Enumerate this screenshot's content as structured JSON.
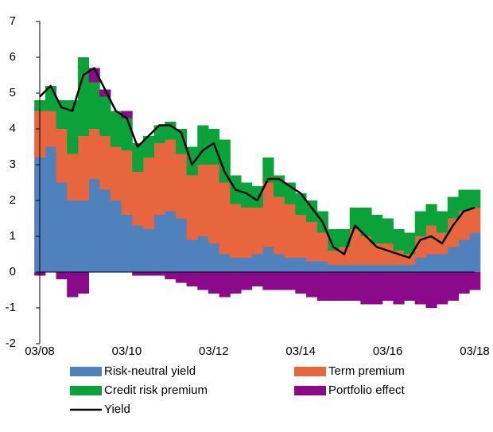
{
  "chart_data": {
    "type": "bar",
    "stacked": true,
    "categories": [
      "03/08",
      null,
      null,
      null,
      null,
      null,
      null,
      null,
      "03/10",
      null,
      null,
      null,
      null,
      null,
      null,
      null,
      "03/12",
      null,
      null,
      null,
      null,
      null,
      null,
      null,
      "03/14",
      null,
      null,
      null,
      null,
      null,
      null,
      null,
      "03/16",
      null,
      null,
      null,
      null,
      null,
      null,
      null,
      "03/18"
    ],
    "ylim": [
      -2,
      7
    ],
    "yticks": [
      -2,
      -1,
      0,
      1,
      2,
      3,
      4,
      5,
      6,
      7
    ],
    "series": [
      {
        "name": "Risk-neutral yield",
        "color": "#4f81bd",
        "values": [
          3.2,
          3.5,
          2.5,
          2.0,
          2.0,
          2.6,
          2.3,
          2.0,
          1.6,
          1.3,
          1.2,
          1.6,
          1.7,
          1.5,
          0.9,
          1.0,
          0.8,
          0.5,
          0.4,
          0.4,
          0.5,
          0.7,
          0.5,
          0.4,
          0.4,
          0.3,
          0.3,
          0.2,
          0.2,
          0.2,
          0.2,
          0.2,
          0.2,
          0.2,
          0.2,
          0.4,
          0.5,
          0.5,
          0.7,
          0.9,
          1.1
        ]
      },
      {
        "name": "Term premium",
        "color": "#e8663d",
        "values": [
          1.3,
          1.0,
          1.5,
          1.3,
          1.8,
          1.4,
          1.5,
          1.5,
          1.8,
          1.5,
          2.0,
          2.0,
          2.0,
          1.8,
          1.8,
          2.0,
          2.2,
          2.0,
          1.5,
          1.4,
          1.3,
          1.8,
          1.6,
          1.5,
          1.2,
          1.1,
          0.8,
          0.4,
          0.5,
          1.0,
          0.8,
          0.6,
          0.6,
          0.4,
          0.3,
          0.6,
          0.8,
          0.6,
          0.8,
          0.8,
          0.7
        ]
      },
      {
        "name": "Credit risk premium",
        "color": "#0aa33a",
        "values": [
          0.3,
          0.7,
          0.8,
          1.5,
          2.2,
          1.3,
          1.1,
          1.0,
          0.9,
          0.8,
          0.6,
          0.5,
          0.5,
          0.7,
          0.8,
          1.1,
          1.0,
          1.2,
          0.8,
          0.7,
          0.6,
          0.7,
          0.6,
          0.6,
          0.6,
          0.6,
          0.6,
          0.6,
          0.5,
          0.6,
          0.8,
          0.8,
          0.7,
          0.6,
          0.6,
          0.7,
          0.6,
          0.6,
          0.6,
          0.6,
          0.5
        ]
      },
      {
        "name": "Portfolio effect",
        "color": "#8b0a8b",
        "values": [
          -0.1,
          0,
          -0.2,
          -0.7,
          -0.6,
          0.4,
          0.2,
          0,
          0.2,
          -0.1,
          -0.1,
          -0.1,
          -0.2,
          -0.3,
          -0.4,
          -0.5,
          -0.6,
          -0.7,
          -0.6,
          -0.5,
          -0.4,
          -0.5,
          -0.5,
          -0.5,
          -0.6,
          -0.7,
          -0.8,
          -0.8,
          -0.8,
          -0.8,
          -0.9,
          -0.9,
          -0.8,
          -0.9,
          -0.8,
          -0.9,
          -1.0,
          -0.9,
          -0.8,
          -0.6,
          -0.5
        ]
      },
      {
        "name": "Yield",
        "color": "#000000",
        "type": "line",
        "values": [
          4.9,
          5.2,
          4.6,
          4.5,
          5.5,
          5.7,
          5.1,
          4.5,
          4.3,
          3.5,
          3.8,
          4.1,
          4.1,
          3.9,
          3.0,
          3.4,
          3.6,
          2.8,
          2.3,
          2.2,
          2.0,
          2.6,
          2.6,
          2.4,
          2.2,
          1.8,
          1.4,
          0.7,
          0.5,
          1.3,
          1.0,
          0.7,
          0.6,
          0.5,
          0.4,
          0.9,
          1.0,
          0.8,
          1.3,
          1.7,
          1.8
        ]
      }
    ]
  }
}
